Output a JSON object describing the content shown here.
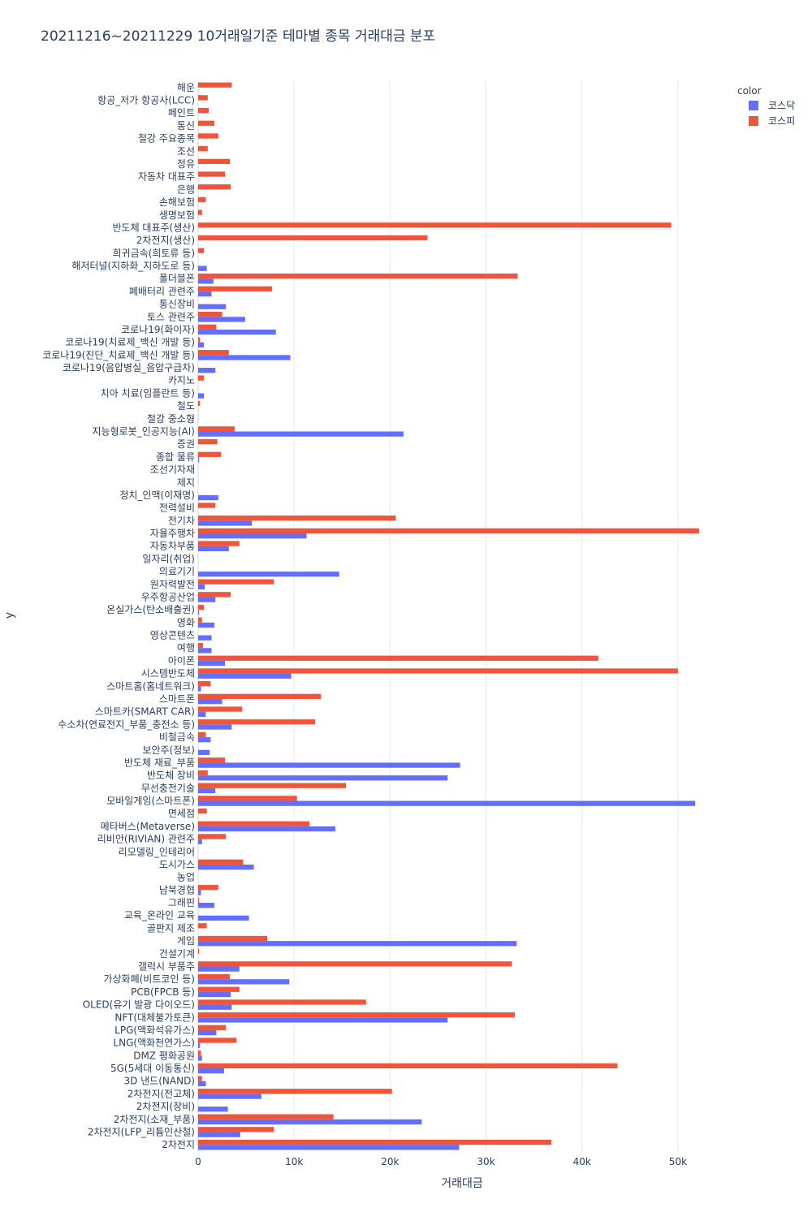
{
  "chart_data": {
    "type": "bar",
    "orientation": "horizontal",
    "barmode": "group",
    "title": "20211216~20211229 10거래일기준 테마별 종목 거래대금 분포",
    "xlabel": "거래대금",
    "ylabel": "y",
    "xlim": [
      0,
      55000
    ],
    "x_ticks": [
      0,
      10000,
      20000,
      30000,
      40000,
      50000
    ],
    "x_tick_labels": [
      "0",
      "10k",
      "20k",
      "30k",
      "40k",
      "50k"
    ],
    "grid": true,
    "legend": {
      "title": "color",
      "placement": "top-right"
    },
    "categories": [
      "해운",
      "항공_저가 항공사(LCC)",
      "페인트",
      "통신",
      "철강 주요종목",
      "조선",
      "정유",
      "자동차 대표주",
      "은행",
      "손해보험",
      "생명보험",
      "반도체 대표주(생산)",
      "2차전지(생산)",
      "희귀금속(희토류 등)",
      "해저터널(지하화_지하도로 등)",
      "폴더블폰",
      "폐배터리 관련주",
      "통신장비",
      "토스 관련주",
      "코로나19(화이자)",
      "코로나19(치료제_백신 개발 등)",
      "코로나19(진단_치료제_백신 개발 등)",
      "코로나19(음압병실_음압구급차)",
      "카지노",
      "치아 치료(임플란트 등)",
      "철도",
      "철강 중소형",
      "지능형로봇_인공지능(AI)",
      "증권",
      "종합 물류",
      "조선기자재",
      "제지",
      "정치_인맥(이재명)",
      "전력설비",
      "전기차",
      "자율주행차",
      "자동차부품",
      "일자리(취업)",
      "의료기기",
      "원자력발전",
      "우주항공산업",
      "온실가스(탄소배출권)",
      "영화",
      "영상콘텐츠",
      "여행",
      "아이폰",
      "시스템반도체",
      "스마트홈(홈네트워크)",
      "스마트폰",
      "스마트카(SMART CAR)",
      "수소차(연료전지_부품_충전소 등)",
      "비철금속",
      "보안주(정보)",
      "반도체 재료_부품",
      "반도체 장비",
      "무선충전기술",
      "모바일게임(스마트폰)",
      "면세점",
      "메타버스(Metaverse)",
      "리비안(RIVIAN) 관련주",
      "리모델링_인테리어",
      "도시가스",
      "농업",
      "남북경협",
      "그래핀",
      "교육_온라인 교육",
      "골판지 제조",
      "게임",
      "건설기계",
      "갤럭시 부품주",
      "가상화폐(비트코인 등)",
      "PCB(FPCB 등)",
      "OLED(유기 발광 다이오드)",
      "NFT(대체불가토큰)",
      "LPG(액화석유가스)",
      "LNG(액화천연가스)",
      "DMZ 평화공원",
      "5G(5세대 이동통신)",
      "3D 낸드(NAND)",
      "2차전지(전고체)",
      "2차전지(장비)",
      "2차전지(소재_부품)",
      "2차전지(LFP_리튬인산철)",
      "2차전지"
    ],
    "series": [
      {
        "name": "코스닥",
        "color": "#636efa",
        "values": [
          0,
          0,
          0,
          0,
          0,
          0,
          0,
          0,
          0,
          0,
          0,
          0,
          0,
          0,
          900,
          1600,
          1400,
          2900,
          4900,
          8100,
          600,
          9600,
          1800,
          0,
          600,
          0,
          0,
          21400,
          0,
          100,
          0,
          0,
          2100,
          0,
          5600,
          11300,
          3200,
          0,
          14700,
          700,
          1800,
          100,
          1700,
          1400,
          1400,
          2800,
          9700,
          300,
          2500,
          800,
          3500,
          1300,
          1200,
          27300,
          26000,
          1800,
          51800,
          0,
          14300,
          400,
          0,
          5800,
          0,
          300,
          1700,
          5300,
          0,
          33200,
          0,
          4300,
          9500,
          3400,
          3500,
          26000,
          1900,
          200,
          400,
          2700,
          800,
          6600,
          3100,
          23300,
          4400,
          27200
        ]
      },
      {
        "name": "코스피",
        "color": "#ef553b",
        "values": [
          3500,
          1000,
          1100,
          1700,
          2100,
          1000,
          3300,
          2800,
          3400,
          800,
          400,
          49300,
          23900,
          600,
          0,
          33300,
          7700,
          0,
          2500,
          1900,
          200,
          3200,
          0,
          600,
          0,
          200,
          0,
          3800,
          2000,
          2400,
          0,
          0,
          0,
          1800,
          20600,
          52200,
          4300,
          0,
          0,
          7900,
          3400,
          600,
          400,
          0,
          500,
          41700,
          50000,
          1300,
          12800,
          4600,
          12200,
          800,
          0,
          2800,
          1000,
          15400,
          10300,
          900,
          11600,
          2900,
          0,
          4700,
          0,
          2100,
          100,
          0,
          900,
          7200,
          100,
          32700,
          3300,
          4300,
          17500,
          33000,
          2900,
          4000,
          300,
          43700,
          400,
          20200,
          0,
          14100,
          7900,
          36800
        ]
      }
    ]
  }
}
